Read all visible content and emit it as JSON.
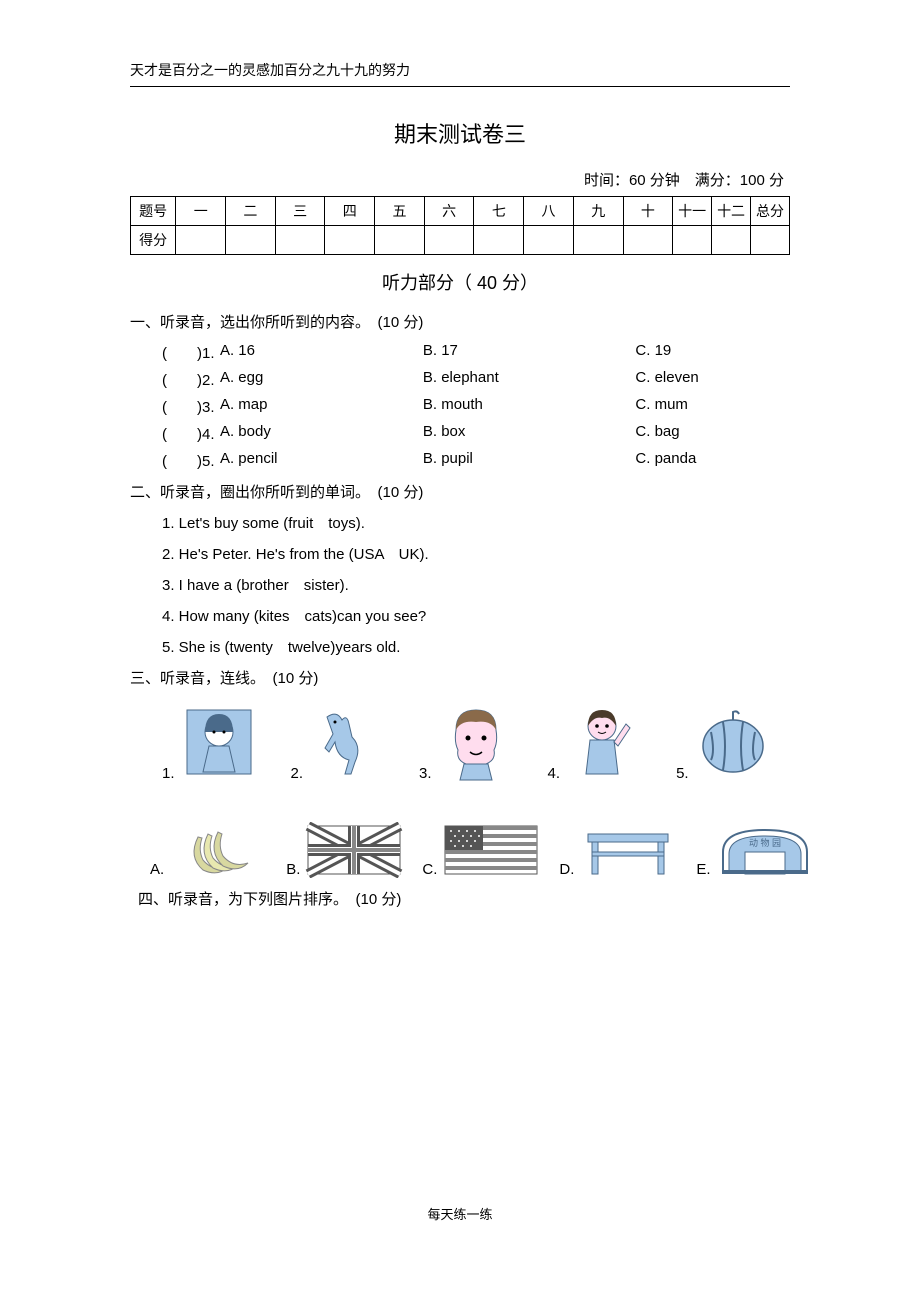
{
  "header_quote": "天才是百分之一的灵感加百分之九十九的努力",
  "title": "期末测试卷三",
  "timing_line": "时间：60 分钟　满分：100 分",
  "score_table": {
    "row_labels": [
      "题号",
      "得分"
    ],
    "columns": [
      "一",
      "二",
      "三",
      "四",
      "五",
      "六",
      "七",
      "八",
      "九",
      "十",
      "十一",
      "十二",
      "总分"
    ]
  },
  "listening_header": "听力部分（ 40 分）",
  "section1": {
    "heading": "一、听录音，选出你所听到的内容。　(10 分)",
    "items": [
      {
        "n": "(　　)1.",
        "a": "A. 16",
        "b": "B. 17",
        "c": "C. 19"
      },
      {
        "n": "(　　)2.",
        "a": "A. egg",
        "b": "B. elephant",
        "c": "C. eleven"
      },
      {
        "n": "(　　)3.",
        "a": "A. map",
        "b": "B. mouth",
        "c": "C. mum"
      },
      {
        "n": "(　　)4.",
        "a": "A. body",
        "b": "B. box",
        "c": "C. bag"
      },
      {
        "n": "(　　)5.",
        "a": "A. pencil",
        "b": "B. pupil",
        "c": "C. panda"
      }
    ]
  },
  "section2": {
    "heading": "二、听录音，圈出你所听到的单词。　(10 分)",
    "items": [
      "1. Let's buy some (fruit　toys).",
      "2. He's Peter. He's from the (USA　UK).",
      "3. I have a (brother　sister).",
      "4. How many (kites　cats)can you see?",
      "5. She is (twenty　twelve)years old."
    ]
  },
  "section3": {
    "heading": "三、听录音，连线。　(10 分)",
    "row1_labels": [
      "1.",
      "2.",
      "3.",
      "4.",
      "5."
    ],
    "row1_alts": [
      "girl",
      "kangaroo",
      "boy-face",
      "boy-pointing",
      "watermelon"
    ],
    "row2_labels": [
      "A.",
      "B.",
      "C.",
      "D.",
      "E."
    ],
    "row2_alts": [
      "bananas",
      "uk-flag",
      "usa-flag",
      "desk",
      "zoo-gate"
    ]
  },
  "section4": {
    "heading": "四、听录音，为下列图片排序。　(10 分)"
  },
  "footer": "每天练一练",
  "colors": {
    "text": "#000000",
    "bg": "#ffffff",
    "accent_blue": "#a6c8e8",
    "accent_dark": "#4a6a8a",
    "gray": "#888888"
  }
}
